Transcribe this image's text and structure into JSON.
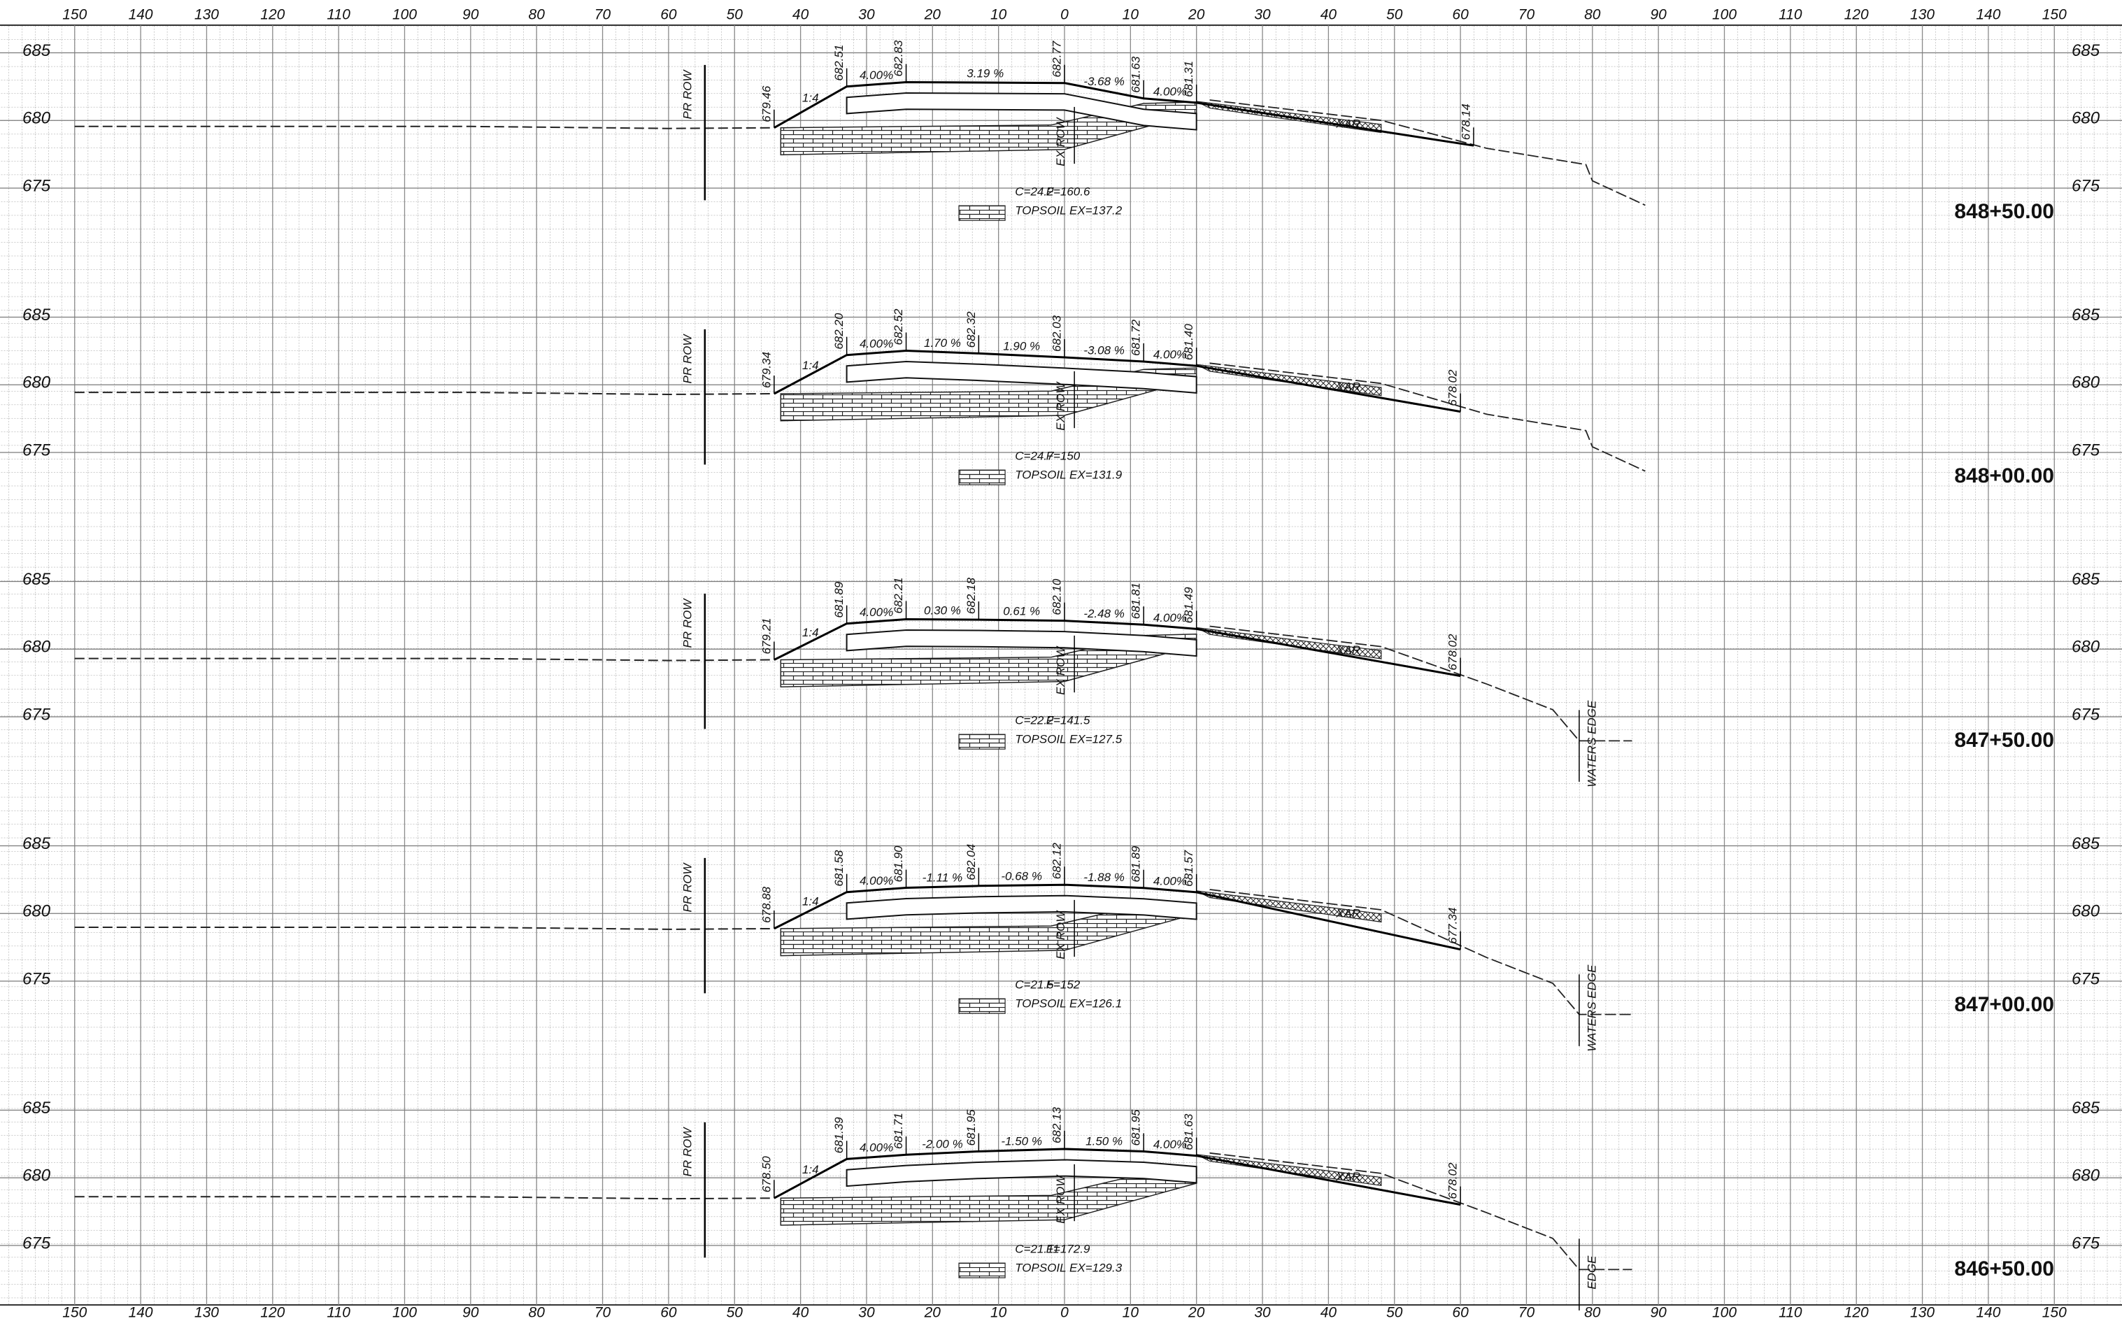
{
  "offsets": [
    150,
    140,
    130,
    120,
    110,
    100,
    90,
    80,
    70,
    60,
    50,
    40,
    30,
    20,
    10,
    0,
    10,
    20,
    30,
    40,
    50,
    60,
    70,
    80,
    90,
    100,
    110,
    120,
    130,
    140,
    150
  ],
  "sections": [
    {
      "station": "848+50.00",
      "elevations": [
        685,
        680,
        675
      ],
      "grade": [
        "679.46",
        "682.51",
        "682.83",
        "682.77",
        "681.63",
        "681.31",
        "678.14"
      ],
      "slopes": [
        "1:4",
        "4.00%",
        "3.19 %",
        "-3.68 %",
        "4.00%"
      ],
      "pr_row": "PR ROW",
      "ex_row": "EX ROW",
      "material": "XAR",
      "cut": "C=24.2",
      "fill": "F=160.6",
      "topsoil": "TOPSOIL EX=137.2"
    },
    {
      "station": "848+00.00",
      "elevations": [
        685,
        680,
        675
      ],
      "grade": [
        "679.34",
        "682.20",
        "682.52",
        "682.32",
        "682.03",
        "681.72",
        "681.40",
        "678.02"
      ],
      "slopes": [
        "1:4",
        "4.00%",
        "1.70 %",
        "1.90 %",
        "-3.08 %",
        "4.00%"
      ],
      "pr_row": "PR ROW",
      "ex_row": "EX ROW",
      "material": "XAR",
      "cut": "C=24.7",
      "fill": "F=150",
      "topsoil": "TOPSOIL EX=131.9"
    },
    {
      "station": "847+50.00",
      "elevations": [
        685,
        680,
        675
      ],
      "grade": [
        "679.21",
        "681.89",
        "682.21",
        "682.18",
        "682.10",
        "681.81",
        "681.49",
        "678.02"
      ],
      "slopes": [
        "1:4",
        "4.00%",
        "0.30 %",
        "0.61 %",
        "-2.48 %",
        "4.00%"
      ],
      "pr_row": "PR ROW",
      "ex_row": "EX ROW",
      "material": "XAR",
      "cut": "C=22.2",
      "fill": "F=141.5",
      "topsoil": "TOPSOIL EX=127.5",
      "waters_edge": "WATERS EDGE"
    },
    {
      "station": "847+00.00",
      "elevations": [
        685,
        680,
        675
      ],
      "grade": [
        "678.88",
        "681.58",
        "681.90",
        "682.04",
        "682.12",
        "681.89",
        "681.57",
        "677.34"
      ],
      "slopes": [
        "1:4",
        "4.00%",
        "-1.11 %",
        "-0.68 %",
        "-1.88 %",
        "4.00%"
      ],
      "pr_row": "PR ROW",
      "ex_row": "EX ROW",
      "material": "XAR",
      "cut": "C=21.5",
      "fill": "F=152",
      "topsoil": "TOPSOIL EX=126.1",
      "waters_edge": "WATERS EDGE"
    },
    {
      "station": "846+50.00",
      "elevations": [
        685,
        680,
        675
      ],
      "grade": [
        "678.50",
        "681.39",
        "681.71",
        "681.95",
        "682.13",
        "681.95",
        "681.63",
        "678.02"
      ],
      "slopes": [
        "1:4",
        "4.00%",
        "-2.00 %",
        "-1.50 %",
        "1.50 %",
        "4.00%"
      ],
      "pr_row": "PR ROW",
      "ex_row": "EX ROW",
      "material": "XAR",
      "cut": "C=21.11",
      "fill": "F=172.9",
      "topsoil": "TOPSOIL EX=129.3",
      "waters_edge": "EDGE"
    }
  ]
}
